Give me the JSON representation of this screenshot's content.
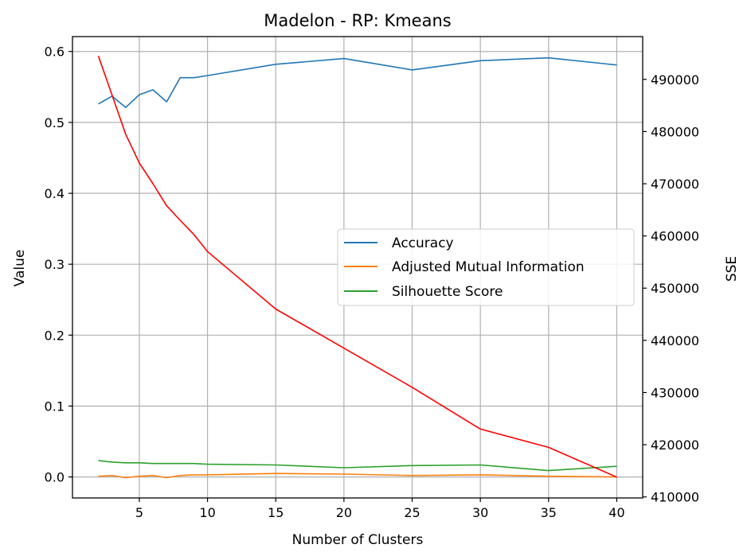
{
  "chart_data": {
    "type": "line",
    "title": "Madelon - RP: Kmeans",
    "xlabel": "Number of Clusters",
    "ylabel": "Value",
    "y2label": "SSE",
    "xlim": [
      0.1,
      41.9
    ],
    "ylim": [
      -0.0296,
      0.621
    ],
    "y2lim": [
      409800,
      498200
    ],
    "xticks": [
      5,
      10,
      15,
      20,
      25,
      30,
      35,
      40
    ],
    "yticks": [
      0.0,
      0.1,
      0.2,
      0.3,
      0.4,
      0.5,
      0.6
    ],
    "y2ticks": [
      410000,
      420000,
      430000,
      440000,
      450000,
      460000,
      470000,
      480000,
      490000
    ],
    "grid": true,
    "legend_position": "center-right",
    "series": [
      {
        "name": "Accuracy",
        "axis": "left",
        "color": "#1f77b4",
        "x": [
          2,
          3,
          4,
          5,
          6,
          7,
          8,
          9,
          10,
          15,
          20,
          25,
          30,
          35,
          40
        ],
        "values": [
          0.526,
          0.537,
          0.521,
          0.539,
          0.546,
          0.529,
          0.563,
          0.563,
          0.566,
          0.582,
          0.59,
          0.574,
          0.587,
          0.591,
          0.581
        ]
      },
      {
        "name": "Adjusted Mutual Information",
        "axis": "left",
        "color": "#ff7f0e",
        "x": [
          2,
          3,
          4,
          5,
          6,
          7,
          8,
          9,
          10,
          15,
          20,
          25,
          30,
          35,
          40
        ],
        "values": [
          0.001,
          0.002,
          -0.001,
          0.001,
          0.002,
          -0.001,
          0.002,
          0.003,
          0.003,
          0.005,
          0.004,
          0.002,
          0.003,
          0.001,
          0.0
        ]
      },
      {
        "name": "Silhouette Score",
        "axis": "left",
        "color": "#2ca02c",
        "x": [
          2,
          3,
          4,
          5,
          6,
          7,
          8,
          9,
          10,
          15,
          20,
          25,
          30,
          35,
          40
        ],
        "values": [
          0.023,
          0.021,
          0.02,
          0.02,
          0.019,
          0.019,
          0.019,
          0.019,
          0.018,
          0.017,
          0.013,
          0.016,
          0.017,
          0.009,
          0.015
        ]
      },
      {
        "axis": "right",
        "color": "#ff0000",
        "x": [
          2,
          3,
          4,
          5,
          6,
          7,
          8,
          9,
          10,
          15,
          20,
          25,
          30,
          35,
          40
        ],
        "values": [
          494500,
          487000,
          479500,
          474000,
          470000,
          465800,
          463000,
          460300,
          457000,
          446000,
          438500,
          431000,
          423000,
          419500,
          413800
        ]
      }
    ]
  }
}
